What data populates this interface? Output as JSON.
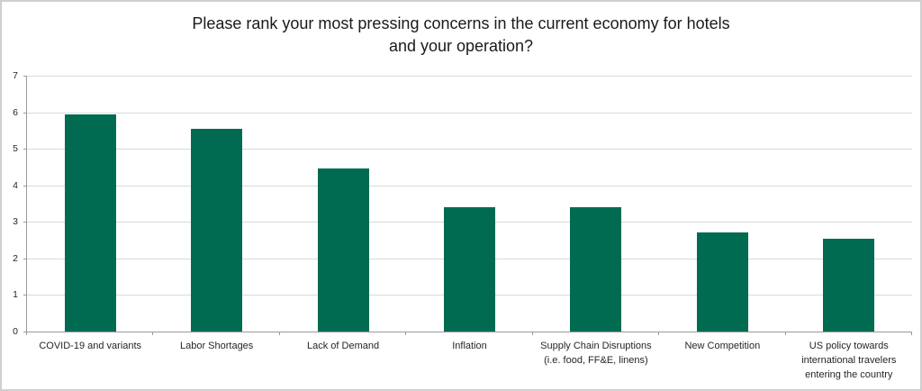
{
  "chart_data": {
    "type": "bar",
    "title": "Please rank your most pressing concerns in the current economy for hotels\nand your operation?",
    "categories": [
      "COVID-19 and variants",
      "Labor Shortages",
      "Lack of Demand",
      "Inflation",
      "Supply Chain Disruptions (i.e. food, FF&E, linens)",
      "New Competition",
      "US policy towards international travelers entering the country"
    ],
    "values": [
      5.95,
      5.55,
      4.45,
      3.4,
      3.4,
      2.7,
      2.55
    ],
    "xlabel": "",
    "ylabel": "",
    "ylim": [
      0,
      7
    ],
    "yticks": [
      0,
      1,
      2,
      3,
      4,
      5,
      6,
      7
    ],
    "grid": "horizontal-only",
    "legend": "none",
    "bar_color": "#016B52",
    "gridline_color": "#d9d9d9",
    "axis_color": "#9a9a9a",
    "text_color": "#262626"
  }
}
